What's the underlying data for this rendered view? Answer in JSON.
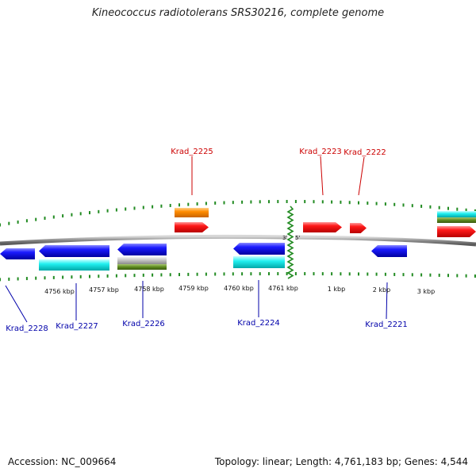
{
  "title": "Kineococcus radiotolerans SRS30216, complete genome",
  "footer": {
    "accession": "Accession: NC_009664",
    "summary": "Topology: linear; Length: 4,761,183 bp; Genes: 4,544"
  },
  "colors": {
    "forward_label": "#cc0000",
    "reverse_label": "#0000aa",
    "tick": "#228b22",
    "backbone": "#888888",
    "red": "#ee0000",
    "blue": "#0000dd",
    "cyan": "#00dddd",
    "orange": "#ff8800",
    "olive": "#5a8a1a",
    "gray": "#b0b0b0",
    "junction": "#228b22"
  },
  "scale_labels": [
    "4756 kbp",
    "4757 kbp",
    "4758 kbp",
    "4759 kbp",
    "4760 kbp",
    "4761 kbp",
    "1 kbp",
    "2 kbp",
    "3 kbp"
  ],
  "end_labels": {
    "three_prime": "3'",
    "five_prime": "5'"
  },
  "gene_labels": {
    "forward": [
      "Krad_2225",
      "Krad_2223",
      "Krad_2222"
    ],
    "reverse": [
      "Krad_2228",
      "Krad_2227",
      "Krad_2226",
      "Krad_2224",
      "Krad_2221"
    ]
  }
}
